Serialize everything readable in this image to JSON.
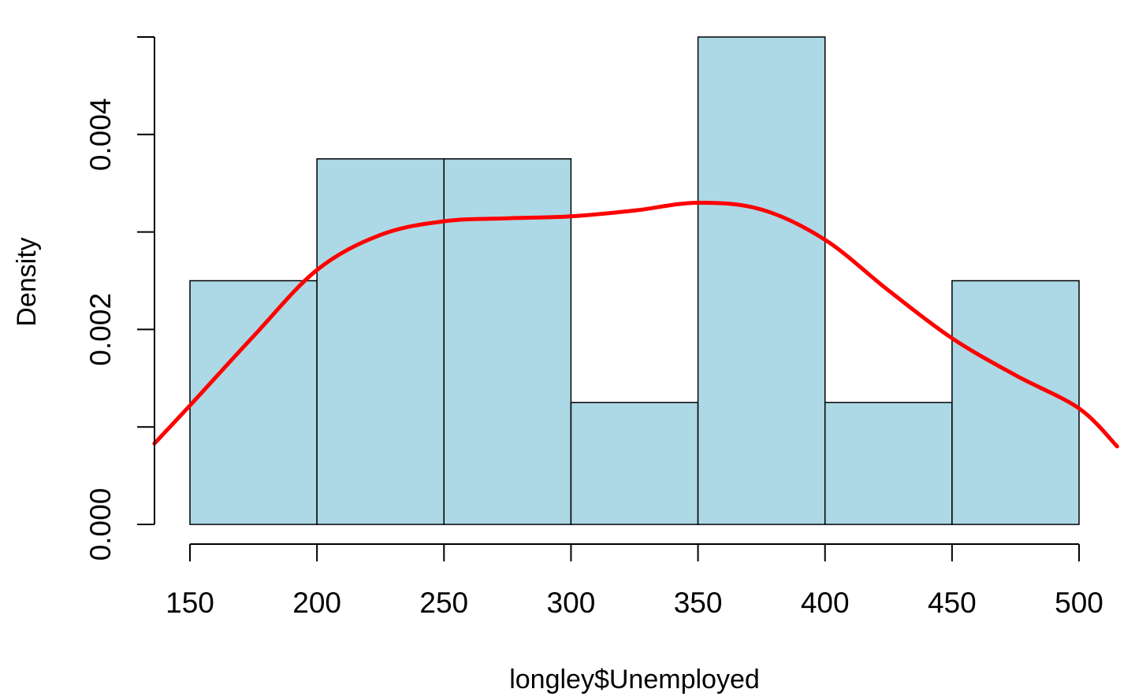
{
  "chart_data": {
    "type": "bar",
    "subtype": "histogram-with-density",
    "title": "",
    "xlabel": "longley$Unemployed",
    "ylabel": "Density",
    "bins": [
      {
        "start": 150,
        "end": 200,
        "density": 0.0025
      },
      {
        "start": 200,
        "end": 250,
        "density": 0.00375
      },
      {
        "start": 250,
        "end": 300,
        "density": 0.00375
      },
      {
        "start": 300,
        "end": 350,
        "density": 0.00125
      },
      {
        "start": 350,
        "end": 400,
        "density": 0.005
      },
      {
        "start": 400,
        "end": 450,
        "density": 0.00125
      },
      {
        "start": 450,
        "end": 500,
        "density": 0.0025
      }
    ],
    "density_curve": {
      "x": [
        136,
        150,
        175,
        200,
        225,
        250,
        275,
        300,
        325,
        350,
        375,
        400,
        425,
        450,
        475,
        500,
        515
      ],
      "y": [
        0.00083,
        0.00122,
        0.00193,
        0.00261,
        0.00297,
        0.00311,
        0.00314,
        0.00316,
        0.00322,
        0.0033,
        0.00323,
        0.00292,
        0.0024,
        0.00191,
        0.00153,
        0.00119,
        0.0008
      ]
    },
    "x_ticks": [
      "150",
      "200",
      "250",
      "300",
      "350",
      "400",
      "450",
      "500"
    ],
    "y_ticks": [
      "0.000",
      "0.002",
      "0.004"
    ],
    "y_minor_ticks": [
      0.001,
      0.003,
      0.005
    ],
    "xlim": [
      136,
      515
    ],
    "ylim": [
      0,
      0.005
    ],
    "grid": false,
    "colors": {
      "bars": "#add8e6",
      "bar_border": "#000000",
      "density_line": "#ff0000"
    }
  }
}
